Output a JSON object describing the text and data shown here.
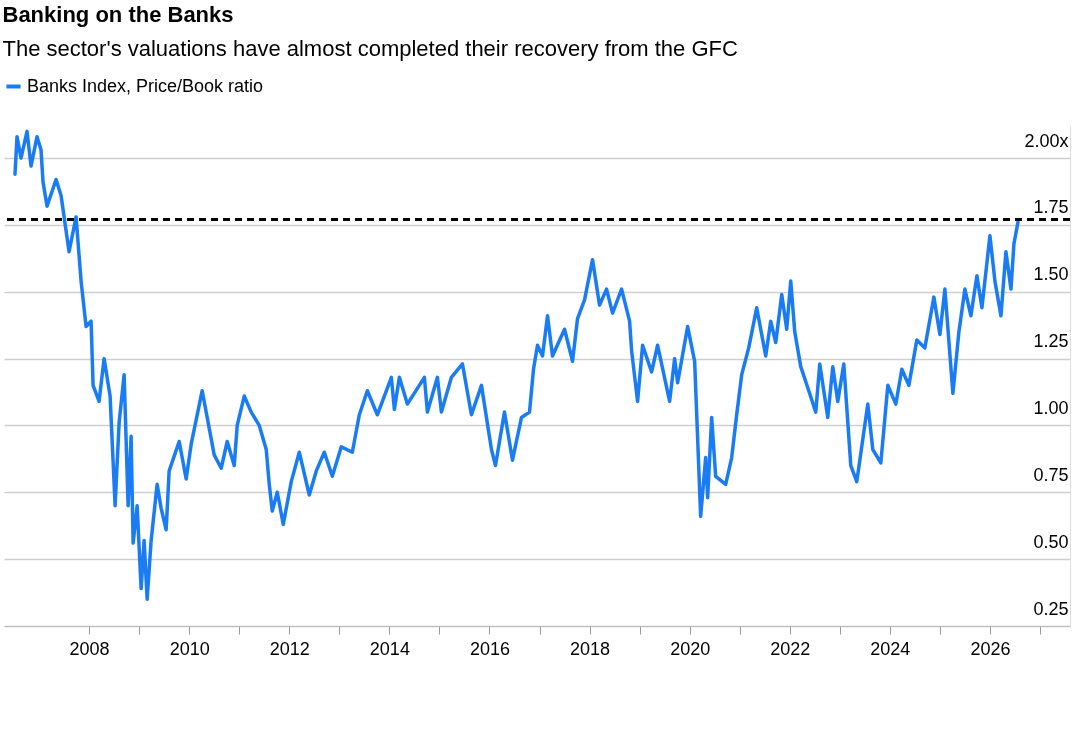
{
  "chart_data": {
    "type": "line",
    "title": "Banking on the Banks",
    "subtitle": "The sector's valuations have almost completed their recovery from the GFC",
    "x": [
      2006.52,
      2006.56,
      2006.64,
      2006.76,
      2006.84,
      2006.96,
      2007.04,
      2007.08,
      2007.16,
      2007.34,
      2007.44,
      2007.6,
      2007.74,
      2007.84,
      2007.94,
      2008.04,
      2008.08,
      2008.2,
      2008.3,
      2008.42,
      2008.52,
      2008.6,
      2008.7,
      2008.78,
      2008.84,
      2008.88,
      2008.96,
      2009.04,
      2009.1,
      2009.16,
      2009.24,
      2009.36,
      2009.44,
      2009.54,
      2009.6,
      2009.8,
      2009.94,
      2010.04,
      2010.26,
      2010.4,
      2010.5,
      2010.64,
      2010.76,
      2010.9,
      2010.96,
      2011.1,
      2011.24,
      2011.4,
      2011.54,
      2011.6,
      2011.66,
      2011.76,
      2011.88,
      2012.04,
      2012.2,
      2012.4,
      2012.54,
      2012.7,
      2012.86,
      2013.04,
      2013.26,
      2013.4,
      2013.56,
      2013.76,
      2014.04,
      2014.1,
      2014.2,
      2014.36,
      2014.7,
      2014.76,
      2014.96,
      2015.04,
      2015.24,
      2015.46,
      2015.64,
      2015.84,
      2016.04,
      2016.12,
      2016.3,
      2016.46,
      2016.64,
      2016.8,
      2016.88,
      2016.96,
      2017.06,
      2017.16,
      2017.26,
      2017.5,
      2017.66,
      2017.76,
      2017.9,
      2018.06,
      2018.2,
      2018.34,
      2018.46,
      2018.64,
      2018.8,
      2018.84,
      2018.96,
      2019.06,
      2019.24,
      2019.36,
      2019.6,
      2019.7,
      2019.76,
      2019.96,
      2020.1,
      2020.22,
      2020.32,
      2020.36,
      2020.44,
      2020.52,
      2020.72,
      2020.84,
      2020.94,
      2021.04,
      2021.18,
      2021.34,
      2021.52,
      2021.62,
      2021.72,
      2021.84,
      2021.94,
      2022.02,
      2022.1,
      2022.22,
      2022.38,
      2022.52,
      2022.6,
      2022.76,
      2022.86,
      2022.96,
      2023.08,
      2023.22,
      2023.34,
      2023.56,
      2023.66,
      2023.82,
      2023.96,
      2024.12,
      2024.24,
      2024.38,
      2024.54,
      2024.7,
      2024.88,
      2025.0,
      2025.1,
      2025.26,
      2025.38,
      2025.5,
      2025.62,
      2025.74,
      2025.84,
      2026.0,
      2026.1,
      2026.22,
      2026.32,
      2026.42,
      2026.48,
      2026.56
    ],
    "series": [
      {
        "name": "Banks Index, Price/Book ratio",
        "color": "#1a7cf5",
        "values": [
          1.94,
          2.08,
          2.0,
          2.1,
          1.97,
          2.08,
          2.03,
          1.91,
          1.82,
          1.92,
          1.86,
          1.65,
          1.78,
          1.54,
          1.37,
          1.39,
          1.15,
          1.09,
          1.25,
          1.11,
          0.7,
          1.01,
          1.19,
          0.7,
          0.96,
          0.56,
          0.7,
          0.39,
          0.57,
          0.35,
          0.57,
          0.78,
          0.69,
          0.61,
          0.83,
          0.94,
          0.8,
          0.93,
          1.13,
          0.99,
          0.89,
          0.84,
          0.94,
          0.85,
          1.0,
          1.11,
          1.05,
          1.0,
          0.91,
          0.78,
          0.68,
          0.75,
          0.63,
          0.79,
          0.9,
          0.74,
          0.83,
          0.9,
          0.81,
          0.92,
          0.9,
          1.04,
          1.13,
          1.04,
          1.18,
          1.06,
          1.18,
          1.08,
          1.18,
          1.05,
          1.18,
          1.05,
          1.18,
          1.23,
          1.04,
          1.15,
          0.91,
          0.85,
          1.05,
          0.87,
          1.03,
          1.05,
          1.21,
          1.3,
          1.26,
          1.41,
          1.26,
          1.36,
          1.24,
          1.4,
          1.47,
          1.62,
          1.45,
          1.51,
          1.42,
          1.51,
          1.39,
          1.28,
          1.09,
          1.3,
          1.2,
          1.3,
          1.09,
          1.25,
          1.16,
          1.37,
          1.24,
          0.66,
          0.88,
          0.73,
          1.03,
          0.81,
          0.78,
          0.88,
          1.04,
          1.19,
          1.29,
          1.44,
          1.26,
          1.39,
          1.31,
          1.49,
          1.36,
          1.54,
          1.35,
          1.22,
          1.13,
          1.05,
          1.23,
          1.03,
          1.22,
          1.09,
          1.23,
          0.85,
          0.79,
          1.08,
          0.91,
          0.86,
          1.15,
          1.08,
          1.21,
          1.15,
          1.32,
          1.29,
          1.48,
          1.34,
          1.51,
          1.12,
          1.35,
          1.51,
          1.41,
          1.56,
          1.44,
          1.71,
          1.54,
          1.41,
          1.65,
          1.51,
          1.68,
          1.76
        ]
      }
    ],
    "xlim": [
      2006.3,
      2027.6
    ],
    "xticks": [
      2008,
      {
        "value": 2009,
        "label": null
      },
      2010,
      {
        "value": 2011,
        "label": null
      },
      2012,
      {
        "value": 2013,
        "label": null
      },
      2014,
      {
        "value": 2015,
        "label": null
      },
      2016,
      {
        "value": 2017,
        "label": null
      },
      2018,
      {
        "value": 2019,
        "label": null
      },
      2020,
      {
        "value": 2021,
        "label": null
      },
      2022,
      {
        "value": 2023,
        "label": null
      },
      2024,
      {
        "value": 2025,
        "label": null
      },
      2026,
      {
        "value": 2027,
        "label": null
      }
    ],
    "ylim": [
      0.25,
      2.12
    ],
    "yticks": [
      0.25,
      {
        "value": 0.5,
        "label": "0.50"
      },
      0.75,
      {
        "value": 1,
        "label": "1.00"
      },
      1.25,
      {
        "value": 1.5,
        "label": "1.50"
      },
      1.75,
      {
        "value": 2,
        "label": "2.00x"
      }
    ],
    "ref_lines": [
      {
        "axis": "y",
        "value": 1.77,
        "color": "#000000",
        "line_style": "dashed"
      }
    ],
    "grid": "y",
    "legend": "top left"
  }
}
